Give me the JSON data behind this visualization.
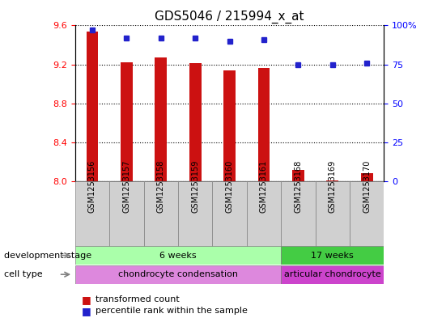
{
  "title": "GDS5046 / 215994_x_at",
  "samples": [
    "GSM1253156",
    "GSM1253157",
    "GSM1253158",
    "GSM1253159",
    "GSM1253160",
    "GSM1253161",
    "GSM1253168",
    "GSM1253169",
    "GSM1253170"
  ],
  "transformed_count": [
    9.54,
    9.22,
    9.27,
    9.21,
    9.14,
    9.16,
    8.12,
    8.01,
    8.08
  ],
  "percentile_rank": [
    97,
    92,
    92,
    92,
    90,
    91,
    75,
    75,
    76
  ],
  "ylim_left": [
    8.0,
    9.6
  ],
  "ylim_right": [
    0,
    100
  ],
  "yticks_left": [
    8.0,
    8.4,
    8.8,
    9.2,
    9.6
  ],
  "yticks_right": [
    0,
    25,
    50,
    75,
    100
  ],
  "bar_color": "#cc1111",
  "dot_color": "#2222cc",
  "grid_color": "#000000",
  "dev_stage_groups": [
    {
      "label": "6 weeks",
      "start": 0,
      "end": 6,
      "color": "#aaffaa"
    },
    {
      "label": "17 weeks",
      "start": 6,
      "end": 9,
      "color": "#44cc44"
    }
  ],
  "cell_type_groups": [
    {
      "label": "chondrocyte condensation",
      "start": 0,
      "end": 6,
      "color": "#dd88dd"
    },
    {
      "label": "articular chondrocyte",
      "start": 6,
      "end": 9,
      "color": "#cc44cc"
    }
  ],
  "dev_stage_label": "development stage",
  "cell_type_label": "cell type",
  "legend_bar_label": "transformed count",
  "legend_dot_label": "percentile rank within the sample"
}
